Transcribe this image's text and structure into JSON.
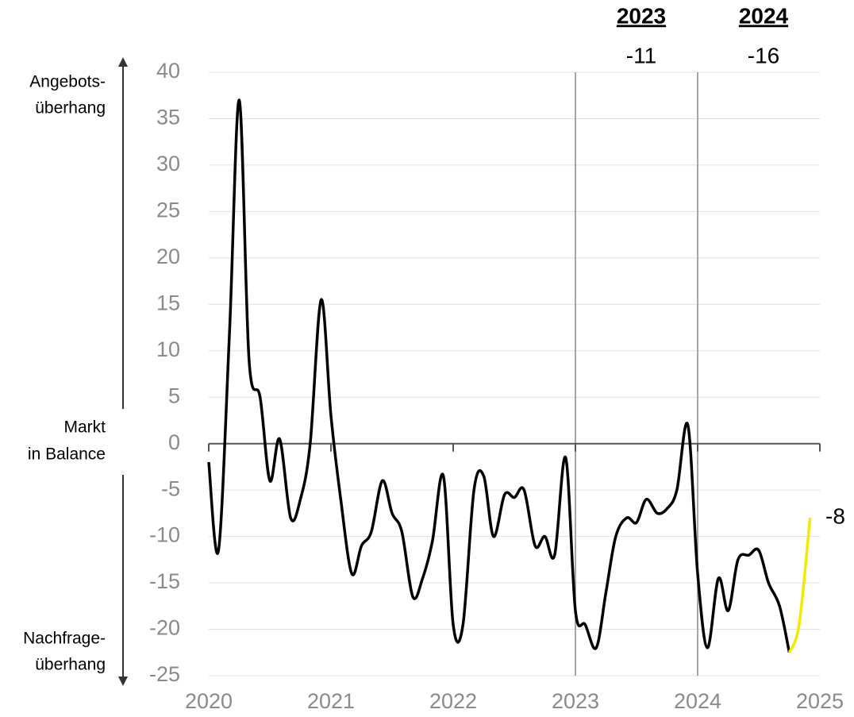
{
  "chart_data": {
    "type": "line",
    "x": [
      2020.0,
      2020.08,
      2020.17,
      2020.25,
      2020.33,
      2020.42,
      2020.5,
      2020.58,
      2020.67,
      2020.75,
      2020.83,
      2020.92,
      2021.0,
      2021.08,
      2021.17,
      2021.25,
      2021.33,
      2021.42,
      2021.5,
      2021.58,
      2021.67,
      2021.75,
      2021.83,
      2021.92,
      2022.0,
      2022.08,
      2022.17,
      2022.25,
      2022.33,
      2022.42,
      2022.5,
      2022.58,
      2022.67,
      2022.75,
      2022.83,
      2022.92,
      2023.0,
      2023.08,
      2023.17,
      2023.25,
      2023.33,
      2023.42,
      2023.5,
      2023.58,
      2023.67,
      2023.75,
      2023.83,
      2023.92,
      2024.0,
      2024.08,
      2024.17,
      2024.25,
      2024.33,
      2024.42,
      2024.5,
      2024.58,
      2024.67,
      2024.75,
      2024.83,
      2024.92
    ],
    "series": [
      {
        "color": "#000000",
        "values": [
          -2,
          -11.5,
          12,
          37,
          9,
          5,
          -4,
          0.5,
          -8,
          -6,
          0,
          15.5,
          3,
          -6,
          -14,
          -11,
          -9.5,
          -4,
          -7.5,
          -9.5,
          -16.5,
          -14.5,
          -10.5,
          -3.5,
          -19.5,
          -19.5,
          -5,
          -3.5,
          -10,
          -5.5,
          -5.8,
          -5,
          -11,
          -10,
          -12,
          -1.5,
          -18,
          -19.5,
          -22,
          -16,
          -10,
          -8,
          -8.5,
          -6,
          -7.5,
          -7,
          -5,
          2,
          -14,
          -22,
          -14.5,
          -18,
          -12.5,
          -12,
          -11.5,
          -15,
          -17.5,
          -22.5,
          null,
          null
        ]
      },
      {
        "color": "#f2ea00",
        "values": [
          null,
          null,
          null,
          null,
          null,
          null,
          null,
          null,
          null,
          null,
          null,
          null,
          null,
          null,
          null,
          null,
          null,
          null,
          null,
          null,
          null,
          null,
          null,
          null,
          null,
          null,
          null,
          null,
          null,
          null,
          null,
          null,
          null,
          null,
          null,
          null,
          null,
          null,
          null,
          null,
          null,
          null,
          null,
          null,
          null,
          null,
          null,
          null,
          null,
          null,
          null,
          null,
          null,
          null,
          null,
          null,
          null,
          -22.5,
          -19.5,
          -8
        ]
      }
    ],
    "xlim": [
      2020,
      2025
    ],
    "xticks": [
      2020,
      2021,
      2022,
      2023,
      2024,
      2025
    ],
    "ylim": [
      -25,
      40
    ],
    "yticks": [
      -25,
      -20,
      -15,
      -10,
      -5,
      0,
      5,
      10,
      15,
      20,
      25,
      30,
      35,
      40
    ],
    "grid": true,
    "vlines": [
      2023,
      2024
    ],
    "annotations": [
      {
        "year": "2023",
        "value": -11
      },
      {
        "year": "2024",
        "value": -16
      }
    ],
    "side_labels": {
      "top": [
        "Angebots-",
        "überhang"
      ],
      "middle": [
        "Markt",
        "in Balance"
      ],
      "bottom": [
        "Nachfrage-",
        "überhang"
      ]
    }
  }
}
